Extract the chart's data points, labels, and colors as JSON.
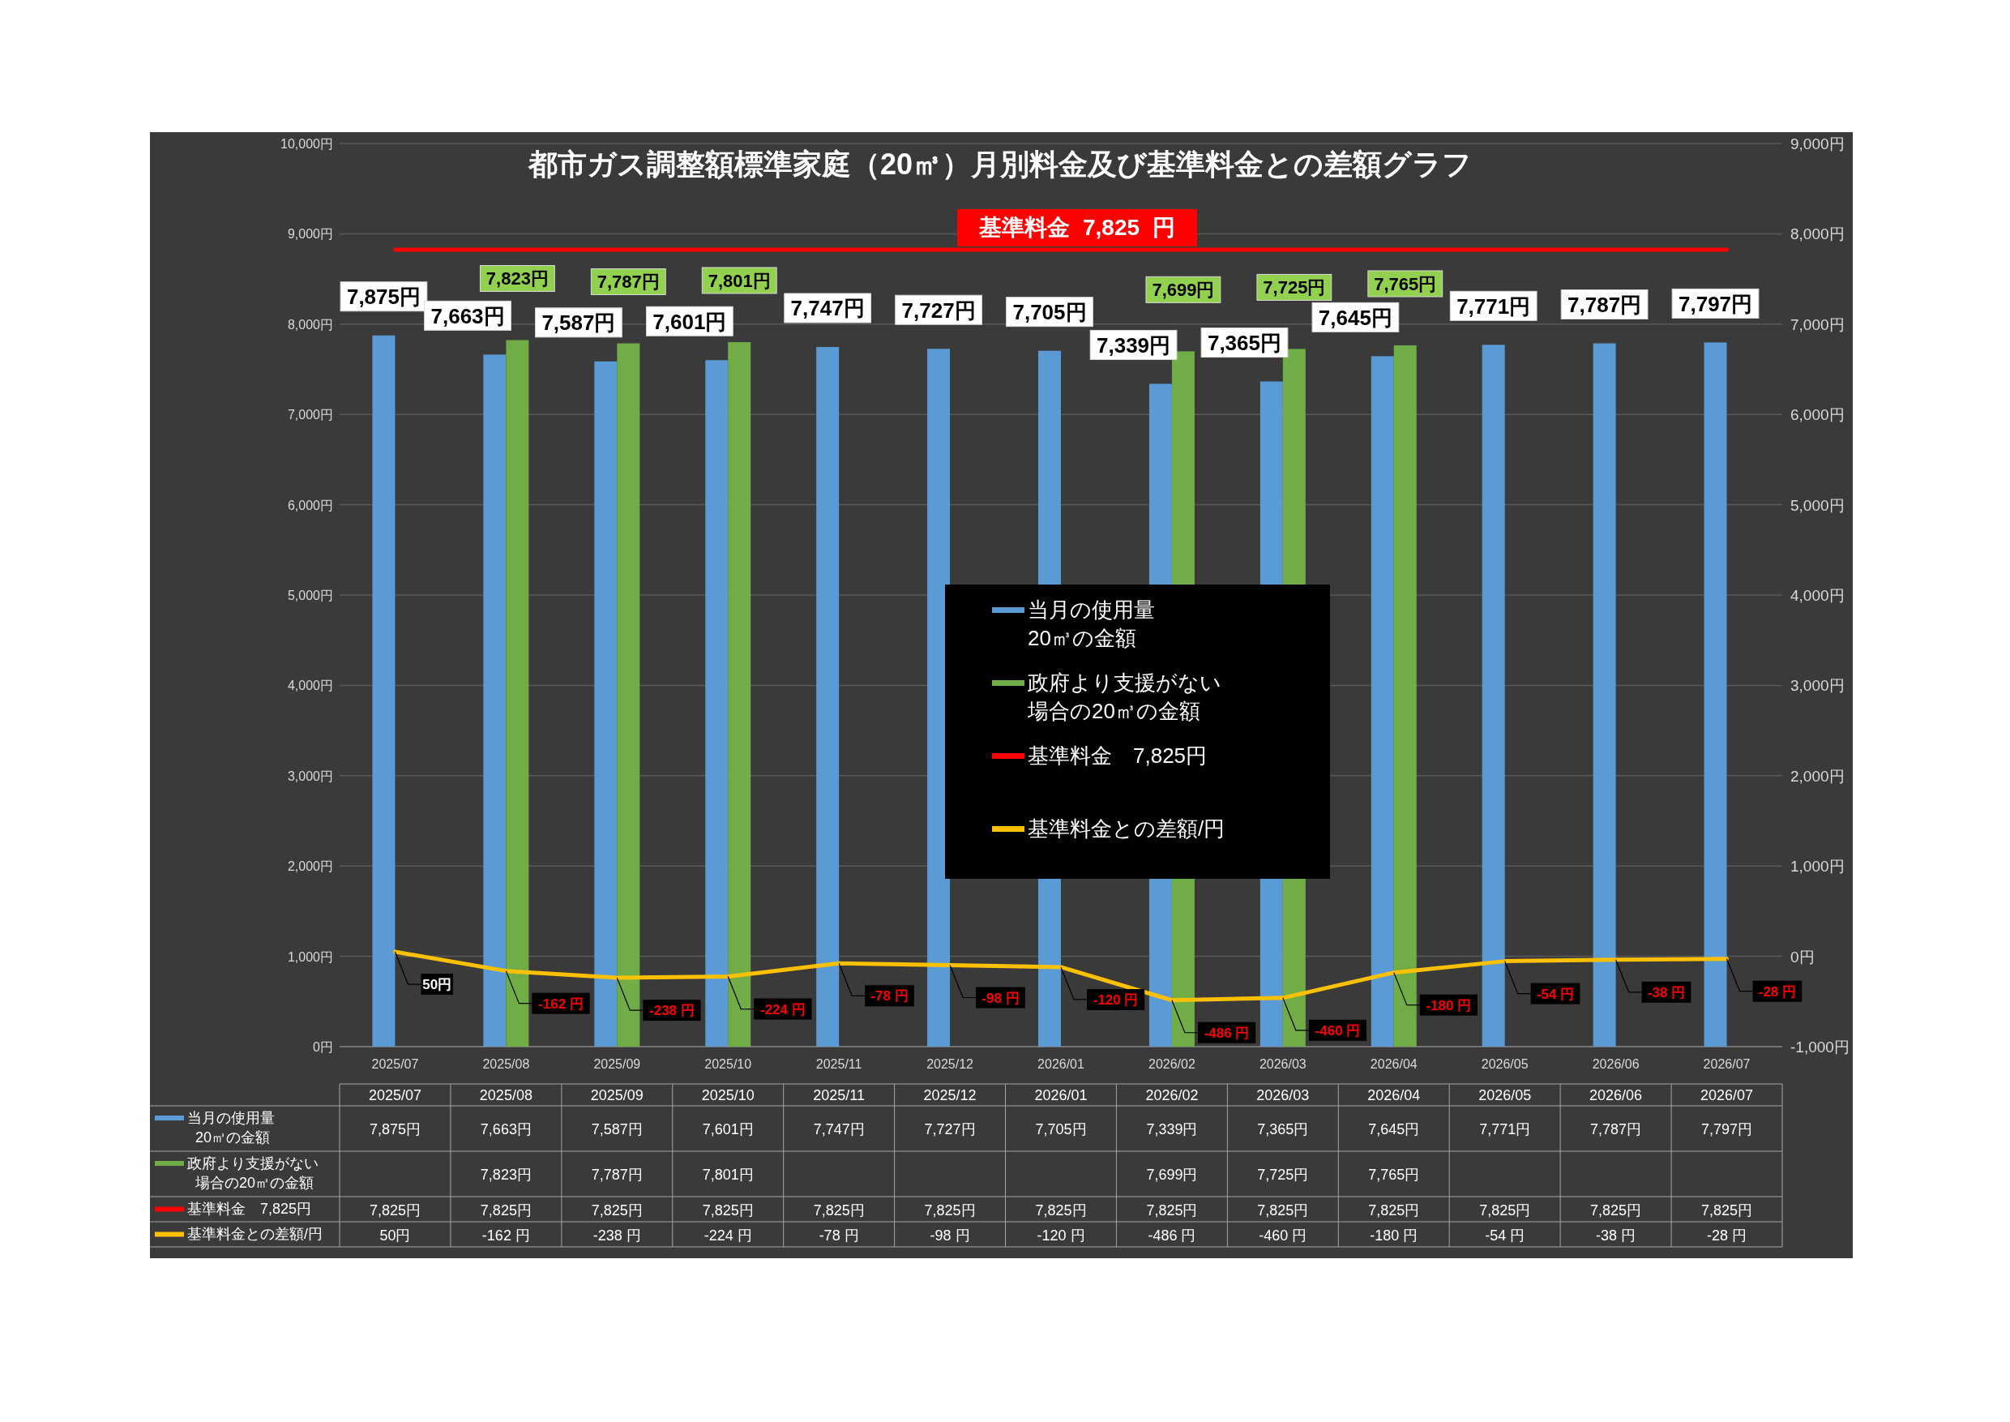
{
  "chart_data": {
    "type": "bar",
    "title": "都市ガス調整額標準家庭（20㎥）月別料金及び基準料金との差額グラフ",
    "categories": [
      "2025/07",
      "2025/08",
      "2025/09",
      "2025/10",
      "2025/11",
      "2025/12",
      "2026/01",
      "2026/02",
      "2026/03",
      "2026/04",
      "2026/05",
      "2026/06",
      "2026/07"
    ],
    "series": [
      {
        "name": "当月の使用量\n20㎥の金額",
        "color": "#5b9bd5",
        "values": [
          7875,
          7663,
          7587,
          7601,
          7747,
          7727,
          7705,
          7339,
          7365,
          7645,
          7771,
          7787,
          7797
        ],
        "value_labels": [
          "7,875円",
          "7,663円",
          "7,587円",
          "7,601円",
          "7,747円",
          "7,727円",
          "7,705円",
          "7,339円",
          "7,365円",
          "7,645円",
          "7,771円",
          "7,787円",
          "7,797円"
        ]
      },
      {
        "name": "政府より支援がない場合の20㎥の金額",
        "color": "#70ad47",
        "values": [
          null,
          7823,
          7787,
          7801,
          null,
          null,
          null,
          7699,
          7725,
          7765,
          null,
          null,
          null
        ],
        "value_labels": [
          null,
          "7,823円",
          "7,787円",
          "7,801円",
          null,
          null,
          null,
          "7,699円",
          "7,725円",
          "7,765円",
          null,
          null,
          null
        ]
      },
      {
        "name": "基準料金　7,825円",
        "type": "line",
        "axis": "y2",
        "color": "#ff0000",
        "values": [
          7825,
          7825,
          7825,
          7825,
          7825,
          7825,
          7825,
          7825,
          7825,
          7825,
          7825,
          7825,
          7825
        ],
        "value_labels": [
          "7,825円",
          "7,825円",
          "7,825円",
          "7,825円",
          "7,825円",
          "7,825円",
          "7,825円",
          "7,825円",
          "7,825円",
          "7,825円",
          "7,825円",
          "7,825円",
          "7,825円"
        ]
      },
      {
        "name": "基準料金との差額/円",
        "type": "line",
        "axis": "y2",
        "color": "#ffc000",
        "values": [
          50,
          -162,
          -238,
          -224,
          -78,
          -98,
          -120,
          -486,
          -460,
          -180,
          -54,
          -38,
          -28
        ],
        "value_labels": [
          "50円",
          "-162 円",
          "-238 円",
          "-224 円",
          "-78 円",
          "-98 円",
          "-120 円",
          "-486 円",
          "-460 円",
          "-180 円",
          "-54 円",
          "-38 円",
          "-28 円"
        ]
      }
    ],
    "ylim": [
      0,
      10000
    ],
    "yticks": [
      {
        "value": 0,
        "label": "0円"
      },
      {
        "value": 1000,
        "label": "1,000円"
      },
      {
        "value": 2000,
        "label": "2,000円"
      },
      {
        "value": 3000,
        "label": "3,000円"
      },
      {
        "value": 4000,
        "label": "4,000円"
      },
      {
        "value": 5000,
        "label": "5,000円"
      },
      {
        "value": 6000,
        "label": "6,000円"
      },
      {
        "value": 7000,
        "label": "7,000円"
      },
      {
        "value": 8000,
        "label": "8,000円"
      },
      {
        "value": 9000,
        "label": "9,000円"
      },
      {
        "value": 10000,
        "label": "10,000円"
      }
    ],
    "y2lim": [
      -1000,
      9000
    ],
    "y2ticks": [
      {
        "value": -1000,
        "label": "-1,000円"
      },
      {
        "value": 0,
        "label": "0円"
      },
      {
        "value": 1000,
        "label": "1,000円"
      },
      {
        "value": 2000,
        "label": "2,000円"
      },
      {
        "value": 3000,
        "label": "3,000円"
      },
      {
        "value": 4000,
        "label": "4,000円"
      },
      {
        "value": 5000,
        "label": "5,000円"
      },
      {
        "value": 6000,
        "label": "6,000円"
      },
      {
        "value": 7000,
        "label": "7,000円"
      },
      {
        "value": 8000,
        "label": "8,000円"
      },
      {
        "value": 9000,
        "label": "9,000円"
      }
    ],
    "annotations": [
      "基準料金  7,825  円"
    ],
    "grid": "y",
    "legend": "center",
    "marker": "none",
    "line_style": "solid"
  }
}
